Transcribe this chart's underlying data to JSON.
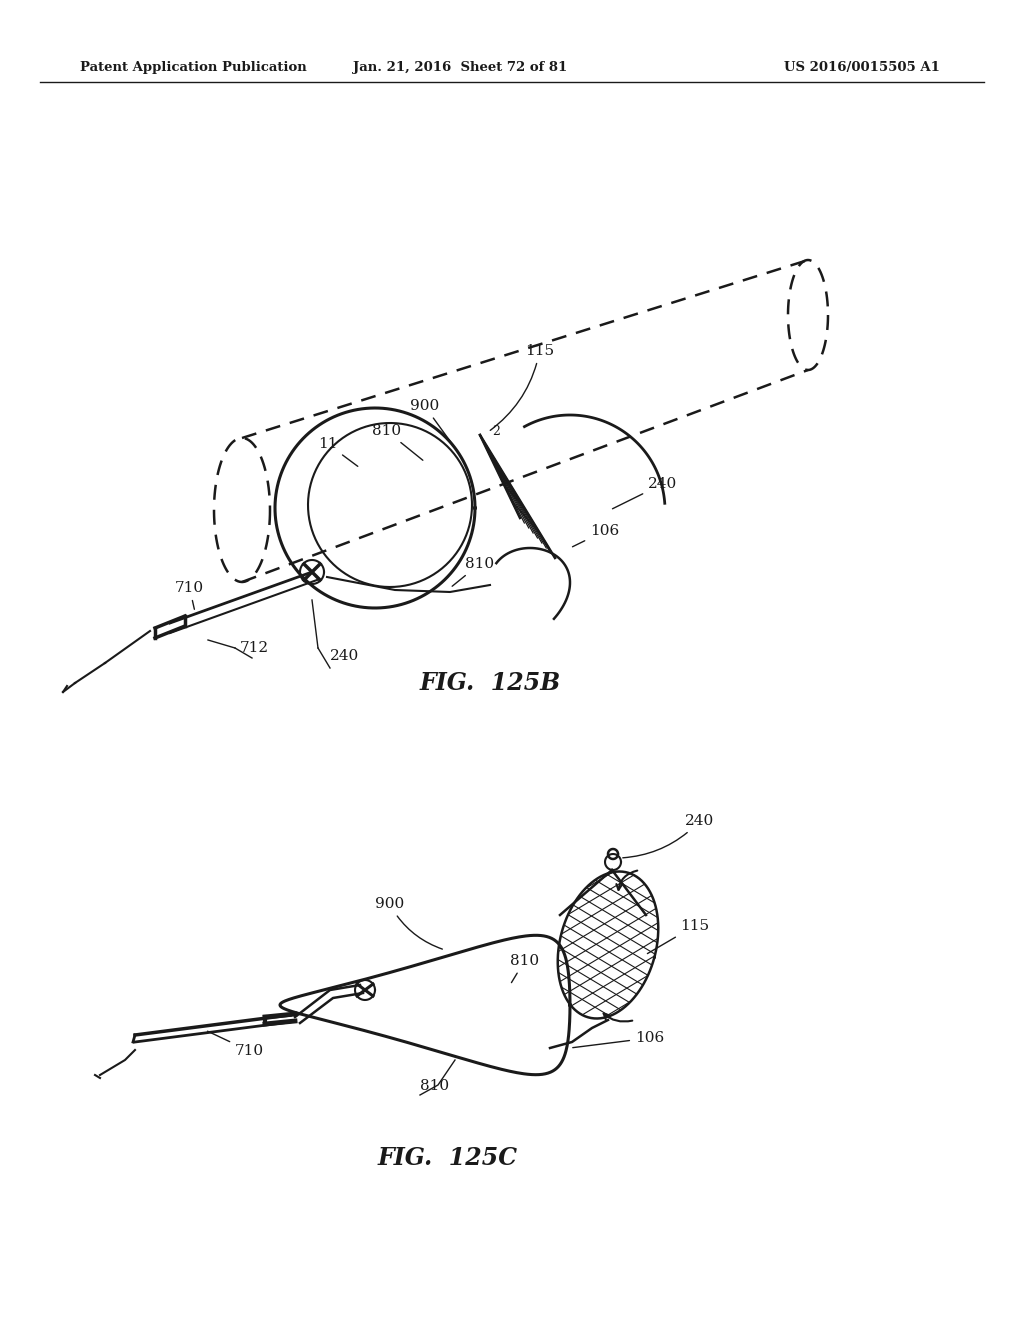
{
  "background_color": "#ffffff",
  "header_left": "Patent Application Publication",
  "header_center": "Jan. 21, 2016  Sheet 72 of 81",
  "header_right": "US 2016/0015505 A1",
  "fig1_label": "FIG. 125B",
  "fig2_label": "FIG. 125C",
  "text_color": "#1a1a1a",
  "line_color": "#1a1a1a"
}
